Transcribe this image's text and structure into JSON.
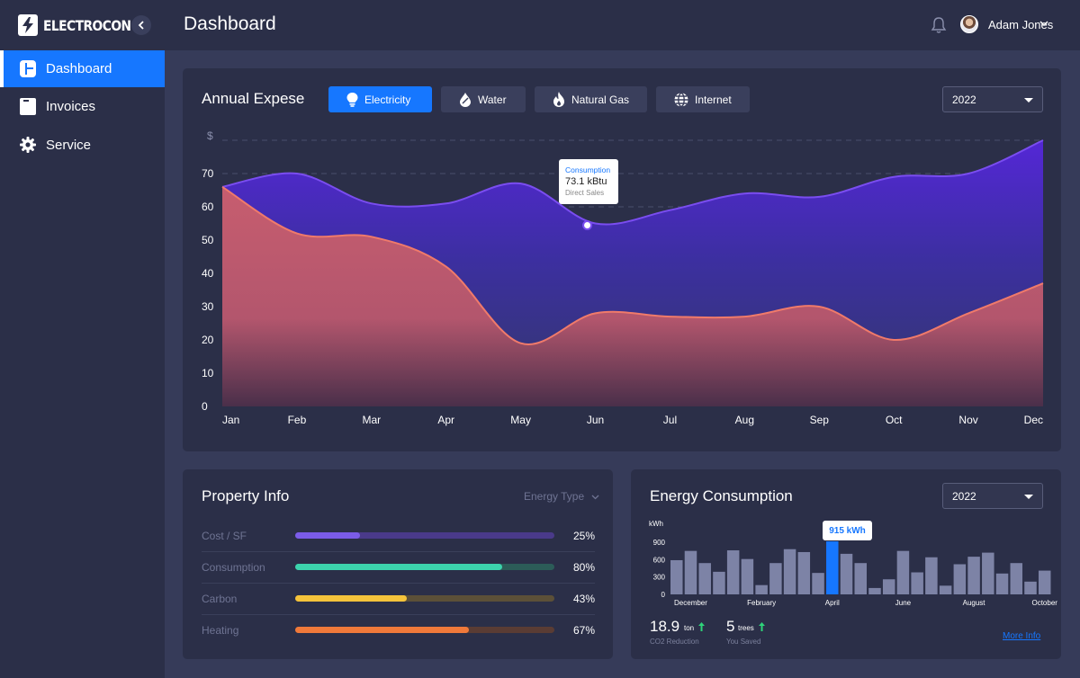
{
  "app": {
    "name": "ELECTROCON",
    "page_title": "Dashboard"
  },
  "user": {
    "name": "Adam Jones"
  },
  "sidebar": {
    "items": [
      {
        "label": "Dashboard",
        "icon": "dashboard-icon",
        "active": true
      },
      {
        "label": "Invoices",
        "icon": "invoice-icon",
        "active": false
      },
      {
        "label": "Service",
        "icon": "gear-icon",
        "active": false
      }
    ]
  },
  "annual": {
    "title": "Annual Expese",
    "tabs": [
      {
        "label": "Electricity",
        "icon": "lightbulb-icon",
        "active": true
      },
      {
        "label": "Water",
        "icon": "water-drop-icon",
        "active": false
      },
      {
        "label": "Natural Gas",
        "icon": "flame-icon",
        "active": false
      },
      {
        "label": "Internet",
        "icon": "globe-icon",
        "active": false
      }
    ],
    "year": "2022",
    "tooltip": {
      "title": "Consumption",
      "value": "73.1 kBtu",
      "sub": "Direct Sales"
    }
  },
  "property": {
    "title": "Property Info",
    "filter_label": "Energy Type",
    "rows": [
      {
        "label": "Cost / SF",
        "value": "25%",
        "percent": 25,
        "color": "#7b5ce8",
        "track": "#4a3a8a"
      },
      {
        "label": "Consumption",
        "value": "80%",
        "percent": 80,
        "color": "#3cd3ad",
        "track": "#2c5c58"
      },
      {
        "label": "Carbon",
        "value": "43%",
        "percent": 43,
        "color": "#f5c33b",
        "track": "#5c5038"
      },
      {
        "label": "Heating",
        "value": "67%",
        "percent": 67,
        "color": "#f0793a",
        "track": "#5a3c34"
      }
    ]
  },
  "energy": {
    "title": "Energy Consumption",
    "year": "2022",
    "tooltip": "915 kWh",
    "unit": "kWh",
    "stats": [
      {
        "value": "18.9",
        "unit": "ton",
        "label": "CO2 Reduction"
      },
      {
        "value": "5",
        "unit": "trees",
        "label": "You Saved"
      }
    ],
    "more_info": "More Info"
  },
  "chart_data": [
    {
      "type": "area",
      "title": "Annual Expese",
      "ylabel": "$",
      "xlabel": "",
      "ylim": [
        0,
        80
      ],
      "yticks": [
        0,
        10,
        20,
        30,
        40,
        50,
        60,
        70
      ],
      "categories": [
        "Jan",
        "Feb",
        "Mar",
        "Apr",
        "May",
        "Jun",
        "Jul",
        "Aug",
        "Sep",
        "Oct",
        "Nov",
        "Dec"
      ],
      "grid": true,
      "series": [
        {
          "values": [
            66,
            70,
            61,
            61,
            67,
            55,
            59,
            64,
            63,
            69,
            70,
            80
          ],
          "color": "#7a4df0"
        },
        {
          "values": [
            66,
            52,
            51,
            42,
            19,
            28,
            27,
            27,
            30,
            20,
            28,
            37
          ],
          "color": "#f07a6a"
        }
      ],
      "highlight": {
        "category": "Jun",
        "value": 55
      }
    },
    {
      "type": "bar",
      "title": "Energy Consumption",
      "ylabel": "kWh",
      "ylim": [
        0,
        1000
      ],
      "yticks": [
        0,
        300,
        600,
        900
      ],
      "x_tick_labels": [
        "December",
        "February",
        "April",
        "June",
        "August",
        "October"
      ],
      "values": [
        590,
        750,
        540,
        390,
        760,
        610,
        160,
        540,
        780,
        730,
        370,
        915,
        700,
        540,
        110,
        260,
        750,
        380,
        640,
        150,
        520,
        650,
        720,
        360,
        540,
        220,
        410
      ],
      "highlight_index": 11,
      "bar_color": "#7d83a6",
      "highlight_color": "#1677ff"
    }
  ]
}
